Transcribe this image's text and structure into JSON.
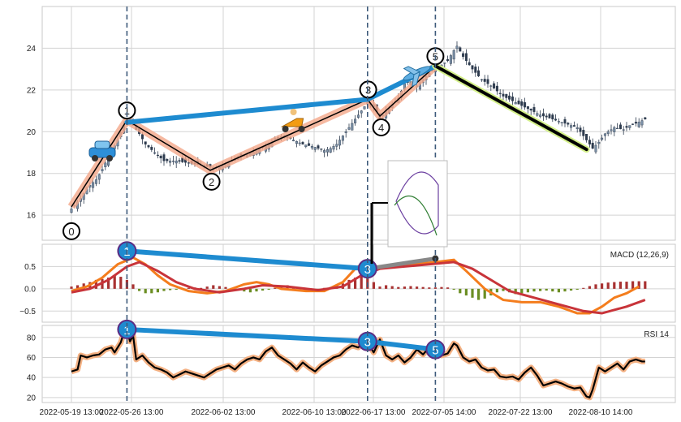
{
  "chart_data": [
    {
      "type": "candlestick",
      "panel": "price",
      "x_tick_labels": [
        "2022-05-19 13:00",
        "2022-05-26 13:00",
        "2022-06-02 13:00",
        "2022-06-10 13:00",
        "2022-06-17 13:00",
        "2022-07-05 14:00",
        "2022-07-22 13:00",
        "2022-08-10 14:00"
      ],
      "ylim": [
        14.8,
        26.0
      ],
      "y_ticks": [
        16,
        18,
        20,
        22,
        24
      ],
      "price_path": [
        [
          0,
          16.3
        ],
        [
          3,
          16.8
        ],
        [
          5,
          17.3
        ],
        [
          8,
          17.7
        ],
        [
          10,
          18.2
        ],
        [
          12,
          18.8
        ],
        [
          15,
          19.6
        ],
        [
          17,
          20.3
        ],
        [
          18,
          20.6
        ],
        [
          20,
          20.3
        ],
        [
          22,
          19.9
        ],
        [
          24,
          19.4
        ],
        [
          27,
          19.0
        ],
        [
          30,
          18.6
        ],
        [
          34,
          18.6
        ],
        [
          38,
          18.5
        ],
        [
          42,
          18.4
        ],
        [
          45,
          18.3
        ],
        [
          48,
          18.3
        ],
        [
          51,
          18.5
        ],
        [
          54,
          18.8
        ],
        [
          57,
          18.9
        ],
        [
          60,
          19.1
        ],
        [
          63,
          19.3
        ],
        [
          66,
          19.7
        ],
        [
          69,
          19.8
        ],
        [
          72,
          19.6
        ],
        [
          75,
          19.4
        ],
        [
          78,
          19.3
        ],
        [
          80,
          19.2
        ],
        [
          82,
          19.1
        ],
        [
          84,
          19.2
        ],
        [
          86,
          19.4
        ],
        [
          88,
          19.8
        ],
        [
          90,
          20.2
        ],
        [
          92,
          20.6
        ],
        [
          94,
          21.0
        ],
        [
          96,
          21.4
        ],
        [
          98,
          21.3
        ],
        [
          100,
          20.6
        ],
        [
          102,
          21.0
        ],
        [
          104,
          21.3
        ],
        [
          106,
          21.6
        ],
        [
          108,
          22.3
        ],
        [
          110,
          22.4
        ],
        [
          112,
          22.2
        ],
        [
          114,
          22.5
        ],
        [
          116,
          22.8
        ],
        [
          118,
          23.0
        ],
        [
          120,
          23.2
        ],
        [
          122,
          23.4
        ],
        [
          124,
          23.9
        ],
        [
          125,
          24.1
        ],
        [
          127,
          23.6
        ],
        [
          130,
          23.0
        ],
        [
          133,
          22.5
        ],
        [
          136,
          22.2
        ],
        [
          140,
          21.7
        ],
        [
          144,
          21.4
        ],
        [
          148,
          21.1
        ],
        [
          152,
          20.8
        ],
        [
          156,
          20.6
        ],
        [
          160,
          20.4
        ],
        [
          164,
          20.2
        ],
        [
          167,
          19.6
        ],
        [
          169,
          19.2
        ],
        [
          171,
          19.5
        ],
        [
          173,
          19.9
        ],
        [
          176,
          20.2
        ],
        [
          179,
          20.1
        ],
        [
          181,
          20.3
        ],
        [
          183,
          20.4
        ],
        [
          186,
          20.6
        ]
      ],
      "harmonic_pattern": {
        "point_labels": [
          "0",
          "1",
          "2",
          "3",
          "4",
          "5"
        ],
        "points": [
          [
            0,
            16.4
          ],
          [
            18,
            20.55
          ],
          [
            45,
            18.15
          ],
          [
            96,
            21.55
          ],
          [
            100,
            20.75
          ],
          [
            118,
            23.15
          ]
        ]
      },
      "trend_line_price": [
        [
          18,
          20.45
        ],
        [
          96,
          21.55
        ],
        [
          118,
          23.15
        ]
      ],
      "downtrend_line": [
        [
          118,
          23.15
        ],
        [
          167,
          19.15
        ]
      ],
      "icons": [
        "car-icon",
        "scooter-icon",
        "airplane-icon"
      ]
    },
    {
      "type": "macd",
      "panel": "macd",
      "legend": "MACD (12,26,9)",
      "ylim": [
        -0.75,
        1.0
      ],
      "y_ticks": [
        0.5,
        0.0,
        -0.5
      ],
      "y_tick_labels": [
        "0.5",
        "0.0",
        "−0.5"
      ],
      "macd_line": [
        [
          0,
          -0.05
        ],
        [
          5,
          0.05
        ],
        [
          10,
          0.25
        ],
        [
          15,
          0.55
        ],
        [
          20,
          0.7
        ],
        [
          24,
          0.55
        ],
        [
          28,
          0.3
        ],
        [
          32,
          0.1
        ],
        [
          38,
          -0.05
        ],
        [
          44,
          -0.1
        ],
        [
          50,
          -0.05
        ],
        [
          56,
          0.1
        ],
        [
          60,
          0.15
        ],
        [
          64,
          0.1
        ],
        [
          68,
          0.0
        ],
        [
          76,
          -0.05
        ],
        [
          82,
          -0.05
        ],
        [
          88,
          0.15
        ],
        [
          92,
          0.45
        ],
        [
          96,
          0.65
        ],
        [
          98,
          0.55
        ],
        [
          100,
          0.45
        ],
        [
          104,
          0.5
        ],
        [
          110,
          0.55
        ],
        [
          118,
          0.6
        ],
        [
          124,
          0.65
        ],
        [
          128,
          0.4
        ],
        [
          134,
          0.0
        ],
        [
          140,
          -0.25
        ],
        [
          146,
          -0.3
        ],
        [
          152,
          -0.3
        ],
        [
          158,
          -0.4
        ],
        [
          164,
          -0.55
        ],
        [
          168,
          -0.55
        ],
        [
          172,
          -0.4
        ],
        [
          176,
          -0.2
        ],
        [
          180,
          -0.1
        ],
        [
          184,
          0.05
        ]
      ],
      "signal_line": [
        [
          0,
          -0.08
        ],
        [
          6,
          0.0
        ],
        [
          12,
          0.2
        ],
        [
          18,
          0.5
        ],
        [
          22,
          0.6
        ],
        [
          28,
          0.4
        ],
        [
          34,
          0.15
        ],
        [
          40,
          0.0
        ],
        [
          48,
          -0.08
        ],
        [
          56,
          0.0
        ],
        [
          62,
          0.08
        ],
        [
          70,
          0.05
        ],
        [
          80,
          -0.03
        ],
        [
          88,
          0.05
        ],
        [
          94,
          0.3
        ],
        [
          100,
          0.45
        ],
        [
          108,
          0.5
        ],
        [
          116,
          0.55
        ],
        [
          124,
          0.6
        ],
        [
          130,
          0.45
        ],
        [
          136,
          0.2
        ],
        [
          142,
          -0.05
        ],
        [
          150,
          -0.2
        ],
        [
          158,
          -0.35
        ],
        [
          166,
          -0.5
        ],
        [
          172,
          -0.55
        ],
        [
          180,
          -0.4
        ],
        [
          186,
          -0.25
        ]
      ],
      "histogram": [
        [
          0,
          0.05
        ],
        [
          2,
          0.08
        ],
        [
          4,
          0.12
        ],
        [
          6,
          0.15
        ],
        [
          8,
          0.2
        ],
        [
          10,
          0.22
        ],
        [
          12,
          0.25
        ],
        [
          14,
          0.3
        ],
        [
          16,
          0.27
        ],
        [
          18,
          0.2
        ],
        [
          20,
          0.1
        ],
        [
          22,
          -0.05
        ],
        [
          24,
          -0.1
        ],
        [
          26,
          -0.1
        ],
        [
          28,
          -0.08
        ],
        [
          30,
          -0.05
        ],
        [
          32,
          -0.03
        ],
        [
          34,
          -0.02
        ],
        [
          36,
          -0.02
        ],
        [
          38,
          0.02
        ],
        [
          40,
          0.03
        ],
        [
          42,
          0.02
        ],
        [
          44,
          0.05
        ],
        [
          46,
          0.08
        ],
        [
          48,
          0.06
        ],
        [
          50,
          0.04
        ],
        [
          52,
          0.02
        ],
        [
          54,
          -0.03
        ],
        [
          56,
          -0.06
        ],
        [
          58,
          -0.08
        ],
        [
          60,
          -0.06
        ],
        [
          62,
          -0.04
        ],
        [
          64,
          -0.02
        ],
        [
          66,
          0.02
        ],
        [
          68,
          0.05
        ],
        [
          70,
          0.08
        ],
        [
          72,
          0.05
        ],
        [
          74,
          0.02
        ],
        [
          76,
          -0.03
        ],
        [
          78,
          -0.06
        ],
        [
          80,
          -0.03
        ],
        [
          82,
          0.02
        ],
        [
          84,
          0.04
        ],
        [
          86,
          0.08
        ],
        [
          88,
          0.12
        ],
        [
          90,
          0.2
        ],
        [
          92,
          0.25
        ],
        [
          94,
          0.3
        ],
        [
          96,
          0.25
        ],
        [
          98,
          0.15
        ],
        [
          100,
          0.05
        ],
        [
          102,
          0.08
        ],
        [
          104,
          0.06
        ],
        [
          106,
          0.04
        ],
        [
          108,
          0.05
        ],
        [
          110,
          0.06
        ],
        [
          112,
          0.05
        ],
        [
          114,
          0.04
        ],
        [
          116,
          0.03
        ],
        [
          118,
          0.03
        ],
        [
          120,
          0.04
        ],
        [
          122,
          0.03
        ],
        [
          124,
          -0.02
        ],
        [
          126,
          -0.1
        ],
        [
          128,
          -0.15
        ],
        [
          130,
          -0.2
        ],
        [
          132,
          -0.25
        ],
        [
          134,
          -0.22
        ],
        [
          136,
          -0.15
        ],
        [
          138,
          -0.08
        ],
        [
          140,
          -0.05
        ],
        [
          142,
          -0.08
        ],
        [
          144,
          -0.12
        ],
        [
          146,
          -0.1
        ],
        [
          148,
          -0.08
        ],
        [
          150,
          -0.06
        ],
        [
          152,
          -0.05
        ],
        [
          154,
          -0.04
        ],
        [
          156,
          -0.06
        ],
        [
          158,
          -0.08
        ],
        [
          160,
          -0.06
        ],
        [
          162,
          -0.04
        ],
        [
          164,
          -0.02
        ],
        [
          166,
          0.02
        ],
        [
          168,
          0.06
        ],
        [
          170,
          0.1
        ],
        [
          172,
          0.12
        ],
        [
          174,
          0.14
        ],
        [
          176,
          0.15
        ],
        [
          178,
          0.16
        ],
        [
          180,
          0.16
        ],
        [
          182,
          0.17
        ],
        [
          184,
          0.17
        ],
        [
          186,
          0.17
        ]
      ],
      "divergence_labels": [
        "1",
        "3"
      ],
      "divergence_points": [
        [
          18,
          0.85
        ],
        [
          96,
          0.45
        ]
      ],
      "extra_line": [
        [
          96,
          0.45
        ],
        [
          118,
          0.68
        ]
      ]
    },
    {
      "type": "rsi",
      "panel": "rsi",
      "legend": "RSI 14",
      "ylim": [
        15,
        92
      ],
      "y_ticks": [
        20,
        40,
        60,
        80
      ],
      "rsi_line": [
        [
          0,
          46
        ],
        [
          2,
          48
        ],
        [
          3,
          62
        ],
        [
          5,
          60
        ],
        [
          7,
          62
        ],
        [
          9,
          63
        ],
        [
          11,
          68
        ],
        [
          13,
          70
        ],
        [
          14,
          65
        ],
        [
          16,
          75
        ],
        [
          17,
          85
        ],
        [
          18,
          87
        ],
        [
          19,
          76
        ],
        [
          20,
          82
        ],
        [
          21,
          58
        ],
        [
          23,
          62
        ],
        [
          25,
          55
        ],
        [
          27,
          50
        ],
        [
          29,
          48
        ],
        [
          31,
          45
        ],
        [
          33,
          40
        ],
        [
          35,
          43
        ],
        [
          37,
          46
        ],
        [
          39,
          44
        ],
        [
          41,
          42
        ],
        [
          43,
          40
        ],
        [
          45,
          44
        ],
        [
          47,
          48
        ],
        [
          49,
          50
        ],
        [
          51,
          52
        ],
        [
          53,
          48
        ],
        [
          55,
          54
        ],
        [
          57,
          58
        ],
        [
          59,
          60
        ],
        [
          61,
          58
        ],
        [
          63,
          66
        ],
        [
          65,
          70
        ],
        [
          67,
          62
        ],
        [
          69,
          58
        ],
        [
          71,
          54
        ],
        [
          73,
          48
        ],
        [
          75,
          55
        ],
        [
          77,
          50
        ],
        [
          79,
          46
        ],
        [
          81,
          52
        ],
        [
          83,
          56
        ],
        [
          85,
          60
        ],
        [
          87,
          62
        ],
        [
          89,
          68
        ],
        [
          91,
          72
        ],
        [
          93,
          70
        ],
        [
          95,
          76
        ],
        [
          96,
          75
        ],
        [
          98,
          65
        ],
        [
          100,
          78
        ],
        [
          102,
          62
        ],
        [
          104,
          58
        ],
        [
          106,
          62
        ],
        [
          108,
          55
        ],
        [
          110,
          60
        ],
        [
          112,
          68
        ],
        [
          114,
          63
        ],
        [
          116,
          70
        ],
        [
          118,
          68
        ],
        [
          120,
          62
        ],
        [
          122,
          64
        ],
        [
          124,
          74
        ],
        [
          125,
          72
        ],
        [
          127,
          60
        ],
        [
          129,
          56
        ],
        [
          131,
          58
        ],
        [
          133,
          50
        ],
        [
          135,
          47
        ],
        [
          137,
          48
        ],
        [
          139,
          41
        ],
        [
          141,
          40
        ],
        [
          143,
          41
        ],
        [
          145,
          38
        ],
        [
          147,
          45
        ],
        [
          149,
          50
        ],
        [
          151,
          42
        ],
        [
          153,
          32
        ],
        [
          155,
          34
        ],
        [
          157,
          36
        ],
        [
          159,
          34
        ],
        [
          161,
          31
        ],
        [
          163,
          29
        ],
        [
          165,
          30
        ],
        [
          167,
          21
        ],
        [
          168,
          20
        ],
        [
          169,
          28
        ],
        [
          171,
          50
        ],
        [
          173,
          46
        ],
        [
          175,
          50
        ],
        [
          177,
          54
        ],
        [
          179,
          48
        ],
        [
          181,
          56
        ],
        [
          183,
          58
        ],
        [
          185,
          56
        ],
        [
          186,
          56
        ]
      ],
      "divergence_labels": [
        "1",
        "3",
        "5"
      ],
      "divergence_points": [
        [
          18,
          88
        ],
        [
          96,
          76
        ],
        [
          118,
          68
        ]
      ]
    }
  ],
  "colors": {
    "candle_up": "#7a8fa6",
    "candle_down": "#2d3b4e",
    "harmonic_fill": "#f4a88a",
    "harmonic_line": "#000000",
    "trend_blue": "#1e8bd0",
    "downtrend_green": "#d4f08a",
    "macd_orange": "#f47d1d",
    "signal_red": "#c8343a",
    "hist_pos": "#a83232",
    "hist_neg": "#6b8e23",
    "rsi_glow": "#f4b183",
    "vline": "#3d5a7a",
    "grid": "#d3d3d3"
  }
}
